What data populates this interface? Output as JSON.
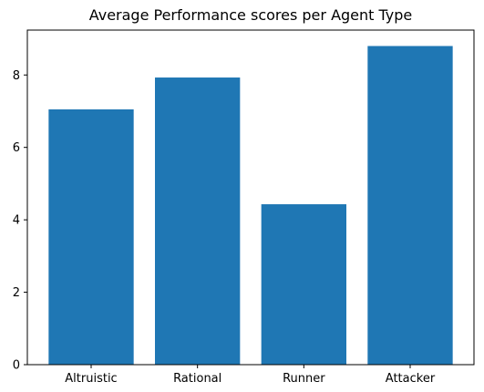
{
  "chart_data": {
    "type": "bar",
    "title": "Average Performance scores per Agent Type",
    "categories": [
      "Altruistic",
      "Rational",
      "Runner",
      "Attacker"
    ],
    "values": [
      7.05,
      7.93,
      4.43,
      8.8
    ],
    "xlabel": "",
    "ylabel": "",
    "ylim": [
      0,
      9.24
    ],
    "yticks": [
      0,
      2,
      4,
      6,
      8
    ],
    "bar_color": "#1f77b4",
    "grid": false,
    "legend": "none"
  }
}
